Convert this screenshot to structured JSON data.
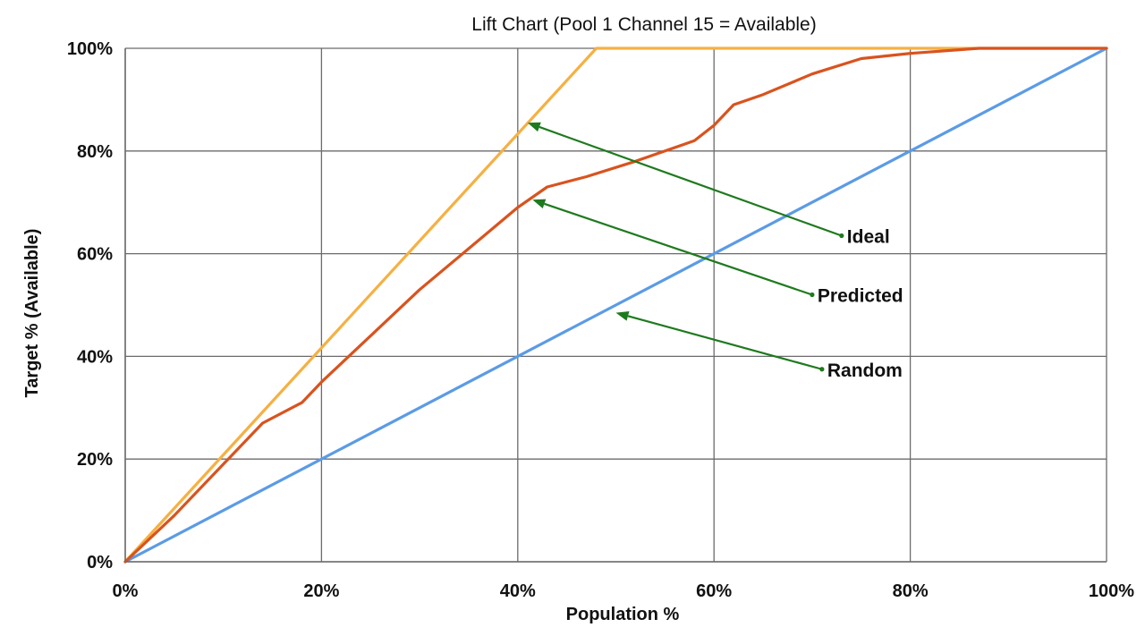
{
  "chart_data": {
    "type": "line",
    "title": "Lift Chart (Pool 1 Channel 15 = Available)",
    "xlabel": "Population %",
    "ylabel": "Target % (Available)",
    "xlim": [
      0,
      100
    ],
    "ylim": [
      0,
      100
    ],
    "x_ticks": [
      "0%",
      "20%",
      "40%",
      "60%",
      "80%",
      "100%"
    ],
    "y_ticks": [
      "0%",
      "20%",
      "40%",
      "60%",
      "80%",
      "100%"
    ],
    "grid": true,
    "legend": "none",
    "series": [
      {
        "name": "Ideal",
        "color": "#f6b042",
        "x": [
          0,
          48,
          100
        ],
        "y": [
          0,
          100,
          100
        ]
      },
      {
        "name": "Predicted",
        "color": "#d9531e",
        "x": [
          0,
          5,
          10,
          14,
          18,
          20,
          25,
          30,
          35,
          40,
          43,
          47,
          52,
          58,
          60,
          62,
          65,
          70,
          75,
          80,
          87,
          100
        ],
        "y": [
          0,
          9,
          19,
          27,
          31,
          35,
          44,
          53,
          61,
          69,
          73,
          75,
          78,
          82,
          85,
          89,
          91,
          95,
          98,
          99,
          100,
          100
        ]
      },
      {
        "name": "Random",
        "color": "#5b9be6",
        "x": [
          0,
          100
        ],
        "y": [
          0,
          100
        ]
      }
    ],
    "annotations": [
      {
        "text": "Ideal",
        "from": [
          73,
          63.5
        ],
        "to": [
          41,
          85.5
        ]
      },
      {
        "text": "Predicted",
        "from": [
          70,
          52
        ],
        "to": [
          41.5,
          70.5
        ]
      },
      {
        "text": "Random",
        "from": [
          71,
          37.5
        ],
        "to": [
          50,
          48.5
        ]
      }
    ],
    "annotation_color": "#1e7a1e"
  }
}
